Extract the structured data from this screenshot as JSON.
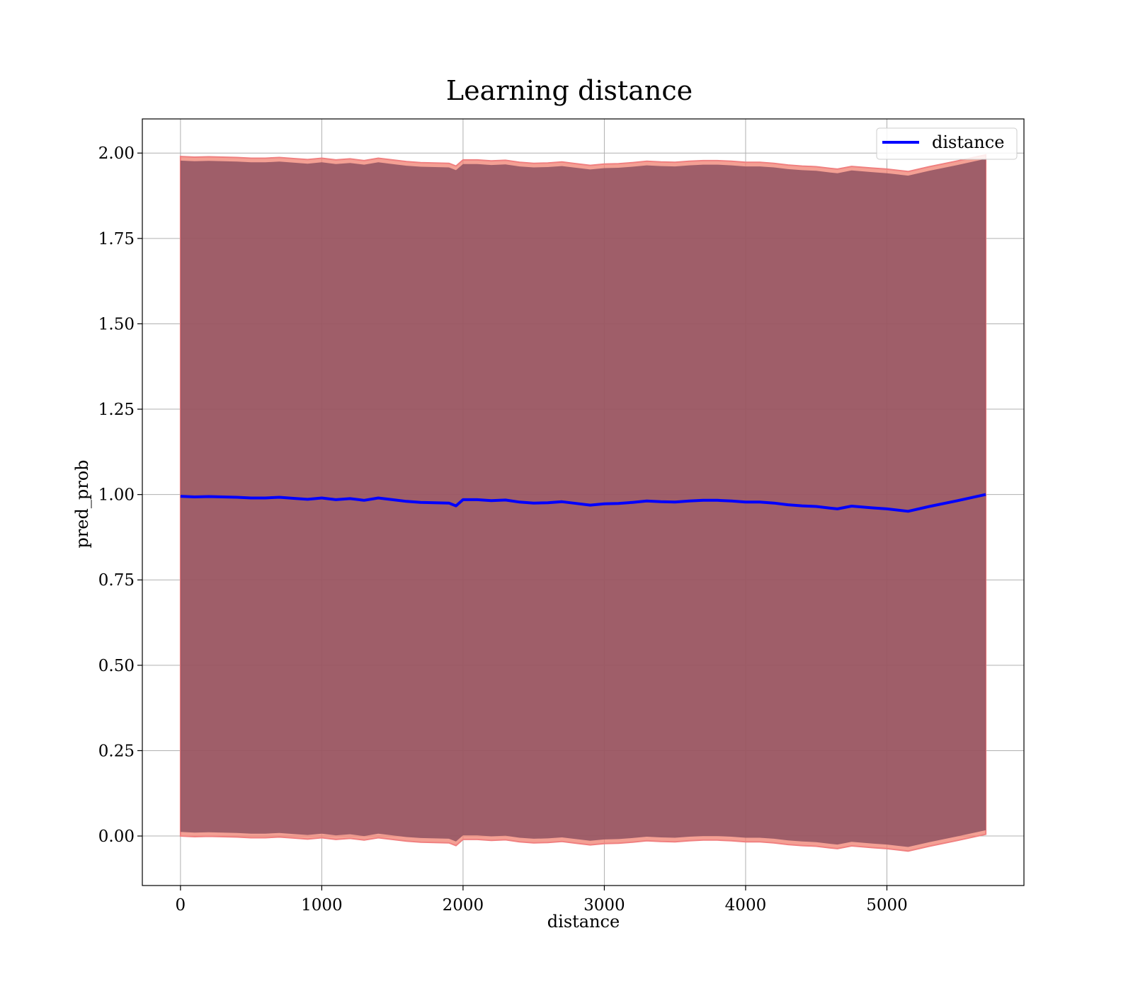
{
  "chart_data": {
    "type": "line",
    "title": "Learning distance",
    "xlabel": "distance",
    "ylabel": "pred_prob",
    "xlim": [
      -270,
      5970
    ],
    "ylim": [
      -0.145,
      2.1
    ],
    "xticks": [
      0,
      1000,
      2000,
      3000,
      4000,
      5000
    ],
    "yticks": [
      0.0,
      0.25,
      0.5,
      0.75,
      1.0,
      1.25,
      1.5,
      1.75,
      2.0
    ],
    "xtick_labels": [
      "0",
      "1000",
      "2000",
      "3000",
      "4000",
      "5000"
    ],
    "ytick_labels": [
      "0.00",
      "0.25",
      "0.50",
      "0.75",
      "1.00",
      "1.25",
      "1.50",
      "1.75",
      "2.00"
    ],
    "grid": true,
    "legend_position": "top-right",
    "series": [
      {
        "name": "distance",
        "color": "#0000ff",
        "x": [
          0,
          100,
          200,
          300,
          400,
          500,
          600,
          700,
          800,
          900,
          1000,
          1100,
          1200,
          1300,
          1400,
          1500,
          1600,
          1700,
          1800,
          1900,
          1950,
          2000,
          2100,
          2200,
          2300,
          2400,
          2500,
          2600,
          2700,
          2800,
          2900,
          3000,
          3100,
          3200,
          3300,
          3400,
          3500,
          3600,
          3700,
          3800,
          3900,
          4000,
          4100,
          4200,
          4300,
          4400,
          4500,
          4600,
          4650,
          4750,
          4900,
          5000,
          5150,
          5300,
          5500,
          5700
        ],
        "y": [
          0.995,
          0.993,
          0.994,
          0.993,
          0.992,
          0.99,
          0.99,
          0.992,
          0.989,
          0.986,
          0.99,
          0.985,
          0.988,
          0.983,
          0.99,
          0.985,
          0.98,
          0.977,
          0.976,
          0.975,
          0.967,
          0.985,
          0.985,
          0.982,
          0.984,
          0.978,
          0.975,
          0.976,
          0.979,
          0.974,
          0.969,
          0.973,
          0.974,
          0.977,
          0.981,
          0.979,
          0.978,
          0.981,
          0.983,
          0.983,
          0.981,
          0.978,
          0.978,
          0.975,
          0.97,
          0.967,
          0.965,
          0.96,
          0.958,
          0.966,
          0.961,
          0.958,
          0.951,
          0.965,
          0.982,
          1.0
        ],
        "band_upper": [
          1.99,
          1.988,
          1.989,
          1.988,
          1.987,
          1.985,
          1.985,
          1.987,
          1.984,
          1.981,
          1.985,
          1.98,
          1.983,
          1.978,
          1.985,
          1.98,
          1.975,
          1.972,
          1.971,
          1.97,
          1.962,
          1.98,
          1.98,
          1.977,
          1.979,
          1.973,
          1.97,
          1.971,
          1.974,
          1.969,
          1.964,
          1.968,
          1.969,
          1.972,
          1.976,
          1.974,
          1.973,
          1.976,
          1.978,
          1.978,
          1.976,
          1.973,
          1.973,
          1.97,
          1.965,
          1.962,
          1.96,
          1.955,
          1.953,
          1.961,
          1.956,
          1.953,
          1.946,
          1.96,
          1.977,
          1.995
        ],
        "band_lower": [
          0.0,
          -0.002,
          -0.001,
          -0.002,
          -0.003,
          -0.005,
          -0.005,
          -0.003,
          -0.006,
          -0.009,
          -0.005,
          -0.01,
          -0.007,
          -0.012,
          -0.005,
          -0.01,
          -0.015,
          -0.018,
          -0.019,
          -0.02,
          -0.028,
          -0.01,
          -0.01,
          -0.013,
          -0.011,
          -0.017,
          -0.02,
          -0.019,
          -0.016,
          -0.021,
          -0.026,
          -0.022,
          -0.021,
          -0.018,
          -0.014,
          -0.016,
          -0.017,
          -0.014,
          -0.012,
          -0.012,
          -0.014,
          -0.017,
          -0.017,
          -0.02,
          -0.025,
          -0.028,
          -0.03,
          -0.035,
          -0.037,
          -0.029,
          -0.034,
          -0.037,
          -0.044,
          -0.03,
          -0.013,
          0.005
        ]
      }
    ]
  }
}
